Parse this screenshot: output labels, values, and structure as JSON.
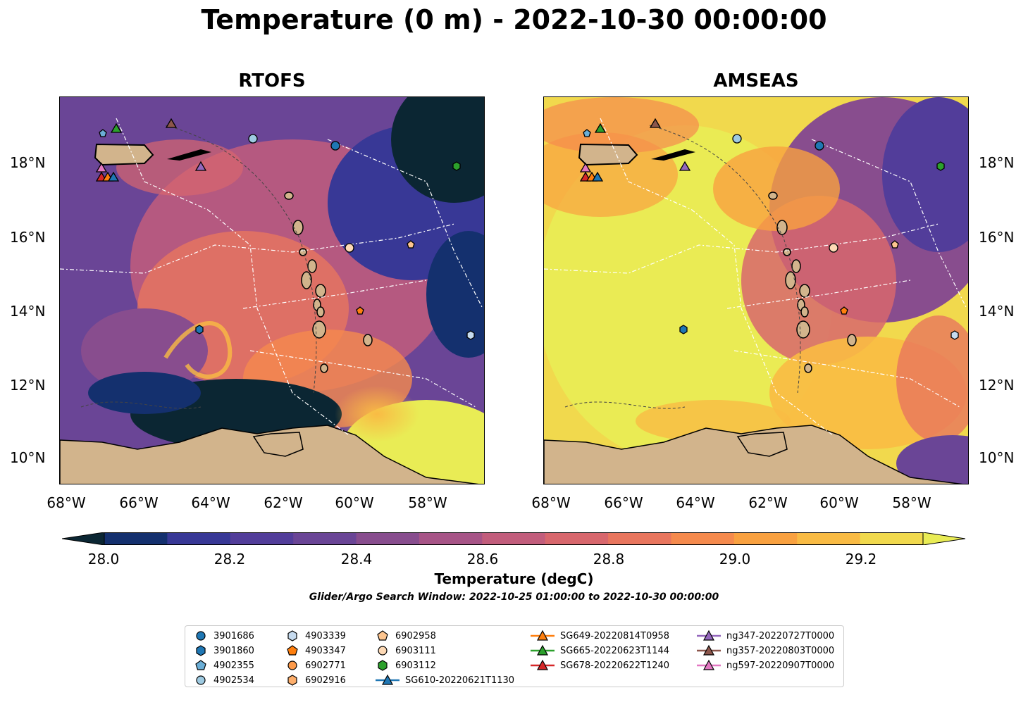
{
  "title": "Temperature (0 m) - 2022-10-30 00:00:00",
  "panels": [
    {
      "name": "RTOFS"
    },
    {
      "name": "AMSEAS"
    }
  ],
  "axes": {
    "lat_ticks": [
      "18°N",
      "16°N",
      "14°N",
      "12°N",
      "10°N"
    ],
    "lon_ticks": [
      "68°W",
      "66°W",
      "64°W",
      "62°W",
      "60°W",
      "58°W"
    ]
  },
  "colorbar": {
    "label": "Temperature (degC)",
    "ticks": [
      "28.0",
      "28.2",
      "28.4",
      "28.6",
      "28.8",
      "29.0",
      "29.2"
    ],
    "range": [
      28.0,
      29.3
    ],
    "colors": [
      "#0b2633",
      "#14306e",
      "#383896",
      "#523d9a",
      "#6a4596",
      "#884d8e",
      "#a75487",
      "#c25d7c",
      "#d8676d",
      "#e9765e",
      "#f58a4d",
      "#f9a140",
      "#f9bb44",
      "#f1d94d",
      "#e9ec55"
    ]
  },
  "search_window": "Glider/Argo Search Window: 2022-10-25 01:00:00 to 2022-10-30 00:00:00",
  "legend": [
    {
      "label": "3901686",
      "marker": "circle",
      "color": "#1f77b4"
    },
    {
      "label": "3901860",
      "marker": "hexagon",
      "color": "#1f77b4"
    },
    {
      "label": "4902355",
      "marker": "pentagon",
      "color": "#6baed6"
    },
    {
      "label": "4902534",
      "marker": "circle",
      "color": "#9ecae1"
    },
    {
      "label": "4903339",
      "marker": "hexagon",
      "color": "#c6dbef"
    },
    {
      "label": "4903347",
      "marker": "pentagon",
      "color": "#ff7f0e"
    },
    {
      "label": "6902771",
      "marker": "circle",
      "color": "#fd9a4a"
    },
    {
      "label": "6902916",
      "marker": "hexagon",
      "color": "#fdae6b"
    },
    {
      "label": "6902958",
      "marker": "pentagon",
      "color": "#fdc58f"
    },
    {
      "label": "6903111",
      "marker": "circle",
      "color": "#fdd9b5"
    },
    {
      "label": "6903112",
      "marker": "hexagon",
      "color": "#2ca02c"
    },
    {
      "label": "SG610-20220621T1130",
      "marker": "triangle-line",
      "color": "#1f77b4"
    },
    {
      "label": "SG649-20220814T0958",
      "marker": "triangle-line",
      "color": "#ff7f0e"
    },
    {
      "label": "SG665-20220623T1144",
      "marker": "triangle-line",
      "color": "#2ca02c"
    },
    {
      "label": "SG678-20220622T1240",
      "marker": "triangle-line",
      "color": "#d62728"
    },
    {
      "label": "ng347-20220727T0000",
      "marker": "triangle-line",
      "color": "#9467bd"
    },
    {
      "label": "ng357-20220803T0000",
      "marker": "triangle-line",
      "color": "#8c564b"
    },
    {
      "label": "ng597-20220907T0000",
      "marker": "triangle-line",
      "color": "#e377c2"
    }
  ]
}
